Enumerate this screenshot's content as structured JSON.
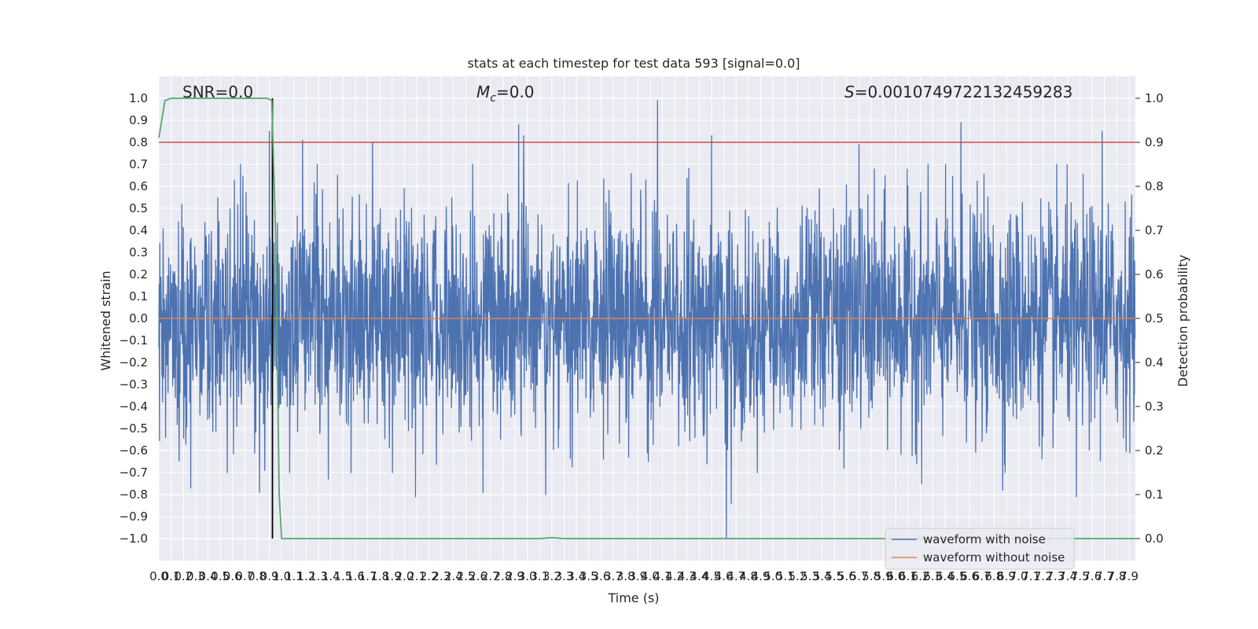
{
  "chart_data": {
    "type": "line",
    "title": "stats at each timestep for test data 593 [signal=0.0]",
    "xlabel": "Time (s)",
    "ylabel_left": "Whitened strain",
    "ylabel_right": "Detection probability",
    "xlim": [
      0.0,
      7.95
    ],
    "ylim_left": [
      -1.1,
      1.1
    ],
    "ylim_right": [
      -0.05,
      1.05
    ],
    "x_ticks": [
      "0.0",
      "0.1",
      "0.2",
      "0.3",
      "0.4",
      "0.5",
      "0.6",
      "0.7",
      "0.8",
      "0.9",
      "1.0",
      "1.1",
      "1.2",
      "1.3",
      "1.4",
      "1.5",
      "1.6",
      "1.7",
      "1.8",
      "1.9",
      "2.0",
      "2.1",
      "2.2",
      "2.3",
      "2.4",
      "2.5",
      "2.6",
      "2.7",
      "2.8",
      "2.9",
      "3.0",
      "3.1",
      "3.2",
      "3.3",
      "3.4",
      "3.5",
      "3.6",
      "3.7",
      "3.8",
      "3.9",
      "4.0",
      "4.1",
      "4.2",
      "4.3",
      "4.4",
      "4.5",
      "4.6",
      "4.7",
      "4.8",
      "4.9",
      "5.0",
      "5.1",
      "5.2",
      "5.3",
      "5.4",
      "5.5",
      "5.6",
      "5.7",
      "5.8",
      "5.9",
      "6.0",
      "6.1",
      "6.2",
      "6.3",
      "6.4",
      "6.5",
      "6.6",
      "6.7",
      "6.8",
      "6.9",
      "7.0",
      "7.1",
      "7.2",
      "7.3",
      "7.4",
      "7.5",
      "7.6",
      "7.7",
      "7.8",
      "7.9"
    ],
    "y_ticks_left": [
      "−1.0",
      "−0.9",
      "−0.8",
      "−0.7",
      "−0.6",
      "−0.5",
      "−0.4",
      "−0.3",
      "−0.2",
      "−0.1",
      "0.0",
      "0.1",
      "0.2",
      "0.3",
      "0.4",
      "0.5",
      "0.6",
      "0.7",
      "0.8",
      "0.9",
      "1.0"
    ],
    "y_ticks_right": [
      "0.0",
      "0.1",
      "0.2",
      "0.3",
      "0.4",
      "0.5",
      "0.6",
      "0.7",
      "0.8",
      "0.9",
      "1.0"
    ],
    "grid": true,
    "legend_placement": "lower-right",
    "annotations": {
      "snr": "SNR=0.0",
      "mc_symbol": "M",
      "mc_sub": "c",
      "mc_value": "=0.0",
      "s_symbol": "S",
      "s_value": "=0.0010749722132459283"
    },
    "series": [
      {
        "name": "waveform with noise",
        "axis": "left",
        "color": "#4c72b0",
        "sample_interval": 0.01,
        "typical_amplitude": 0.25,
        "peaks": [
          {
            "x": 0.9,
            "y": 0.85
          },
          {
            "x": 1.17,
            "y": 0.81
          },
          {
            "x": 1.74,
            "y": 0.8
          },
          {
            "x": 2.93,
            "y": 0.88
          },
          {
            "x": 2.97,
            "y": 0.83
          },
          {
            "x": 4.06,
            "y": 0.99
          },
          {
            "x": 4.5,
            "y": 0.83
          },
          {
            "x": 5.7,
            "y": 0.79
          },
          {
            "x": 6.53,
            "y": 0.89
          },
          {
            "x": 6.87,
            "y": 0.82
          },
          {
            "x": 7.68,
            "y": 0.85
          }
        ],
        "troughs": [
          {
            "x": 0.26,
            "y": -0.77
          },
          {
            "x": 0.82,
            "y": -0.79
          },
          {
            "x": 1.38,
            "y": -0.73
          },
          {
            "x": 2.09,
            "y": -0.81
          },
          {
            "x": 2.64,
            "y": -0.79
          },
          {
            "x": 3.15,
            "y": -0.8
          },
          {
            "x": 4.62,
            "y": -1.0
          },
          {
            "x": 4.66,
            "y": -0.84
          },
          {
            "x": 6.21,
            "y": -0.75
          },
          {
            "x": 6.87,
            "y": -0.78
          },
          {
            "x": 7.47,
            "y": -0.81
          }
        ]
      },
      {
        "name": "waveform without noise",
        "axis": "left",
        "color": "#dd8452",
        "x": [
          0.0,
          7.95
        ],
        "y": [
          0.0,
          0.0
        ]
      },
      {
        "name": "detection probability",
        "axis": "right",
        "color": "#55a868",
        "x": [
          0.0,
          0.05,
          0.1,
          0.2,
          0.5,
          0.88,
          0.92,
          0.95,
          0.98,
          1.0,
          1.5,
          3.1,
          3.2,
          3.3,
          4.8,
          7.95
        ],
        "y": [
          0.91,
          0.995,
          1.0,
          1.0,
          1.0,
          1.0,
          0.995,
          0.7,
          0.1,
          0.0,
          0.0,
          0.0,
          0.002,
          0.0,
          0.0,
          0.0
        ]
      }
    ],
    "reference_lines": [
      {
        "orientation": "horizontal",
        "axis": "left",
        "y": 0.8,
        "color": "#c44e52"
      },
      {
        "orientation": "vertical",
        "x": 0.925,
        "y_range": [
          -1.0,
          1.0
        ],
        "color": "#000000"
      }
    ]
  }
}
